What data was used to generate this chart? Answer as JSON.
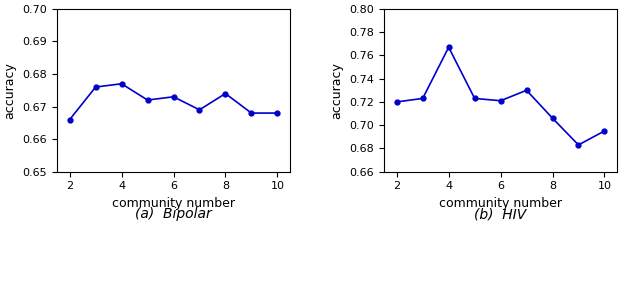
{
  "bipolar": {
    "x": [
      2,
      3,
      4,
      5,
      6,
      7,
      8,
      9,
      10
    ],
    "y": [
      0.666,
      0.676,
      0.677,
      0.672,
      0.673,
      0.669,
      0.674,
      0.668,
      0.668
    ],
    "ylim": [
      0.65,
      0.7
    ],
    "yticks": [
      0.65,
      0.66,
      0.67,
      0.68,
      0.69,
      0.7
    ],
    "xlabel": "community number",
    "ylabel": "accuracy",
    "caption": "(a)  Bipolar"
  },
  "hiv": {
    "x": [
      2,
      3,
      4,
      5,
      6,
      7,
      8,
      9,
      10
    ],
    "y": [
      0.72,
      0.723,
      0.767,
      0.723,
      0.721,
      0.73,
      0.706,
      0.683,
      0.695
    ],
    "ylim": [
      0.66,
      0.8
    ],
    "yticks": [
      0.66,
      0.68,
      0.7,
      0.72,
      0.74,
      0.76,
      0.78,
      0.8
    ],
    "xlabel": "community number",
    "ylabel": "accuracy",
    "caption": "(b)  HIV"
  },
  "line_color": "#0000cc",
  "marker": "o",
  "markersize": 3.5,
  "linewidth": 1.2,
  "xticks": [
    2,
    4,
    6,
    8,
    10
  ],
  "xtick_labels": [
    "2",
    "4",
    "6",
    "8",
    "10"
  ],
  "fontsize_axis_label": 9,
  "fontsize_tick": 8,
  "fontsize_caption": 10,
  "background_color": "#ffffff"
}
